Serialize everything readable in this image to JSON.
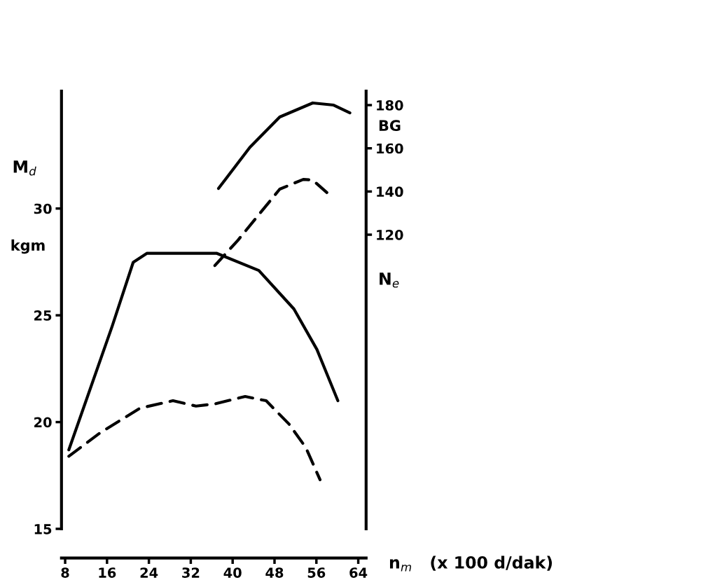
{
  "chart_data": {
    "type": "line",
    "ylabel": "M$_{d}$",
    "y2label": "N$_{e}$",
    "xlabel": "n$_{m}$   (x 100 d/dak)",
    "annotations": [
      "kgm",
      "BG"
    ],
    "xlim": [
      7.3,
      65.5
    ],
    "xticks": [
      8,
      16,
      24,
      32,
      40,
      48,
      56,
      64
    ],
    "ylim": [
      15,
      35.5
    ],
    "yticks": [
      15,
      20,
      25,
      30
    ],
    "y2lim": [
      -16.2,
      186.5
    ],
    "y2ticks": [
      120,
      140,
      160,
      180
    ],
    "grid": false,
    "legend": false,
    "marker": "none",
    "series": [
      {
        "color": "#000000",
        "line_style": "solid",
        "x": [
          8.7,
          17.0,
          21.0,
          23.6,
          37.0,
          45.0,
          51.7,
          56.1,
          60.1
        ],
        "values": [
          18.7,
          24.5,
          27.48,
          27.9,
          27.9,
          27.1,
          25.3,
          23.4,
          21.0
        ]
      },
      {
        "color": "#000000",
        "line_style": "dashed",
        "x": [
          8.7,
          14.7,
          22.3,
          28.6,
          33.0,
          36.6,
          42.4,
          46.4,
          50.8,
          54.0,
          56.7
        ],
        "values": [
          18.4,
          19.5,
          20.65,
          21.0,
          20.75,
          20.85,
          21.2,
          21.0,
          19.9,
          18.8,
          17.3
        ]
      },
      {
        "color": "#000000",
        "line_style": "solid",
        "axis": "y2",
        "x": [
          37.3,
          43.3,
          49.0,
          55.3,
          59.3,
          62.4
        ],
        "values": [
          141.4,
          160.5,
          174.5,
          181.0,
          180.0,
          176.4
        ]
      },
      {
        "color": "#000000",
        "line_style": "dashed",
        "axis": "y2",
        "x": [
          36.6,
          41.0,
          44.6,
          49.0,
          53.5,
          55.3,
          58.0
        ],
        "values": [
          105.7,
          117.4,
          128.1,
          141.1,
          145.6,
          145.3,
          139.5
        ]
      }
    ]
  }
}
